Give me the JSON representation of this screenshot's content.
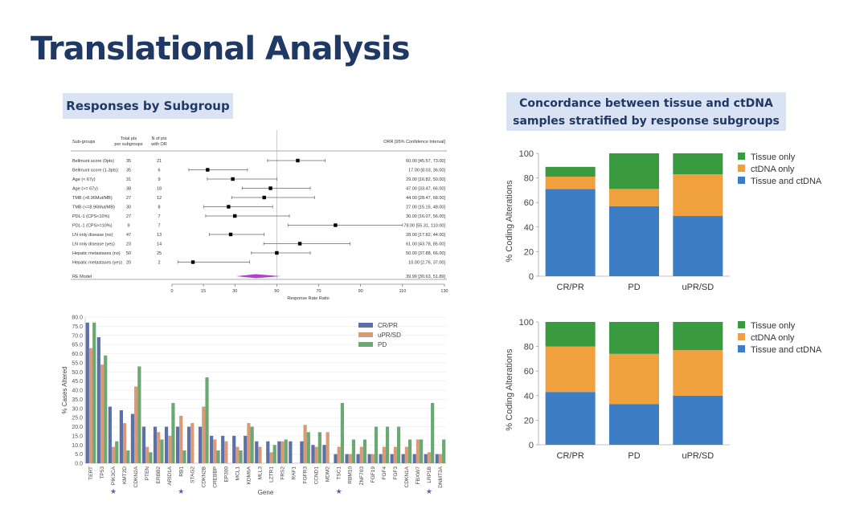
{
  "page_title": "Translational Analysis",
  "sub_heading": "Responses by Subgroup",
  "concordance_heading": [
    "Concordance between tissue and ctDNA",
    "samples stratified by response subgroups"
  ],
  "colors": {
    "title": "#1f3864",
    "box": "#dae3f3",
    "green": "#3a9a40",
    "orange": "#f0a03c",
    "blue": "#3c7dc4",
    "bar_blue": "#5b6fa8",
    "bar_orange": "#d99a76",
    "bar_green": "#6aa874"
  },
  "chart_data": [
    {
      "type": "forest",
      "headers": {
        "subgroups": "Sub-groups",
        "total": [
          "Total pts",
          "per subgroups"
        ],
        "n_orr": [
          "N of pts",
          "with OR"
        ],
        "ci": "ORR [95% Confidence Interval]"
      },
      "rows": [
        {
          "label": "Bellmunt score (0pts)",
          "total": "35",
          "n": "21",
          "orr": 60,
          "lo": 45.57,
          "hi": 73,
          "text": "60.00 [45.57, 73.00]"
        },
        {
          "label": "Bellmunt score (1-3pts)",
          "total": "35",
          "n": "6",
          "orr": 17,
          "lo": 8.03,
          "hi": 36,
          "text": "17.00 [8.03, 36.00]"
        },
        {
          "label": "Age (< 67y)",
          "total": "31",
          "n": "9",
          "orr": 29,
          "lo": 16.82,
          "hi": 50,
          "text": "29.00 [16.82, 50.00]"
        },
        {
          "label": "Age (>= 67y)",
          "total": "38",
          "n": "18",
          "orr": 47,
          "lo": 33.47,
          "hi": 66,
          "text": "47.00 [33.47, 66.00]"
        },
        {
          "label": "TMB (>8.96Mut/MB)",
          "total": "27",
          "n": "12",
          "orr": 44,
          "lo": 28.47,
          "hi": 68,
          "text": "44.00 [28.47, 68.00]"
        },
        {
          "label": "TMB (<=8.96Mut/MB)",
          "total": "30",
          "n": "8",
          "orr": 27,
          "lo": 15.15,
          "hi": 48,
          "text": "27.00 [15.15, 48.00]"
        },
        {
          "label": "PDL-1 (CPS<10%)",
          "total": "27",
          "n": "7",
          "orr": 30,
          "lo": 16.07,
          "hi": 56,
          "text": "30.00 [16.07, 56.00]"
        },
        {
          "label": "PDL-1 (CPS>=10%)",
          "total": "9",
          "n": "7",
          "orr": 78,
          "lo": 55.31,
          "hi": 110,
          "text": "78.00 [55.31, 110.00]"
        },
        {
          "label": "LN only disease (no)",
          "total": "47",
          "n": "13",
          "orr": 28,
          "lo": 17.82,
          "hi": 44,
          "text": "28.00 [17.82, 44.00]"
        },
        {
          "label": "LN only disease (yes)",
          "total": "23",
          "n": "14",
          "orr": 61,
          "lo": 43.78,
          "hi": 85,
          "text": "61.00 [43.78, 85.00]"
        },
        {
          "label": "Hepatic metastases (no)",
          "total": "50",
          "n": "25",
          "orr": 50,
          "lo": 37.88,
          "hi": 66,
          "text": "50.00 [37.88, 66.00]"
        },
        {
          "label": "Hepatic metastases (yes)",
          "total": "20",
          "n": "2",
          "orr": 10,
          "lo": 2.76,
          "hi": 37,
          "text": "10.00 [2.76, 37.00]"
        }
      ],
      "model": {
        "label": "RE Model",
        "orr": 39.99,
        "lo": 30.63,
        "hi": 51.89,
        "text": "39.99 [30.63, 51.89]"
      },
      "xticks": [
        0,
        15,
        30,
        50,
        70,
        90,
        110,
        130
      ],
      "xlim": [
        0,
        130
      ],
      "xlabel": "Response Rate Ratio"
    },
    {
      "type": "bar",
      "ylabel": "% Cases Altered",
      "xlabel": "Gene",
      "ylim": [
        0,
        80
      ],
      "yticks": [
        "0.0",
        "5.0",
        "10.0",
        "15.0",
        "20.0",
        "25.0",
        "30.0",
        "35.0",
        "40.0",
        "45.0",
        "50.0",
        "55.0",
        "60.0",
        "65.0",
        "70.0",
        "75.0",
        "80.0"
      ],
      "categories": [
        "TERT",
        "TP53",
        "PIK3CA",
        "KMT2D",
        "CDKN2A",
        "PTEN",
        "ERBB2",
        "ARID1A",
        "RB1",
        "STAG2",
        "CDKN2B",
        "CREBBP",
        "EP300",
        "MCL1",
        "KDM6A",
        "MLL3",
        "LZTR1",
        "FRS2",
        "RAF1",
        "FGFR3",
        "CCND1",
        "MDM2",
        "TSC1",
        "RBM10",
        "ZNF703",
        "FGF19",
        "FGF4",
        "FGF3",
        "CDKN1A",
        "FBXW7",
        "LRP1B",
        "DNMT3A"
      ],
      "starred": [
        "PIK3CA",
        "RB1",
        "TSC1",
        "LRP1B"
      ],
      "star_glyph": "★",
      "series": [
        {
          "name": "CR/PR",
          "values": [
            77,
            69,
            31,
            29,
            27,
            20,
            20,
            20,
            20,
            20,
            20,
            15,
            15,
            15,
            15,
            12,
            12,
            12,
            12,
            12,
            10,
            10,
            5,
            5,
            5,
            5,
            5,
            5,
            5,
            5,
            5,
            5
          ]
        },
        {
          "name": "uPR/SD",
          "values": [
            63,
            54,
            9,
            22,
            42,
            9,
            17,
            15,
            26,
            22,
            31,
            13,
            12,
            9,
            22,
            9,
            6,
            12,
            0,
            21,
            9,
            17,
            9,
            5,
            9,
            5,
            9,
            9,
            9,
            13,
            6,
            5
          ]
        },
        {
          "name": "PD",
          "values": [
            77,
            59,
            12,
            7,
            53,
            6,
            13,
            33,
            7,
            0,
            47,
            7,
            0,
            7,
            20,
            0,
            10,
            13,
            0,
            17,
            17,
            0,
            33,
            13,
            13,
            20,
            20,
            20,
            13,
            13,
            33,
            13
          ]
        }
      ]
    },
    {
      "type": "stacked-bar",
      "ylabel": "% Coding Alterations",
      "ylim": [
        0,
        100
      ],
      "yticks": [
        "0",
        "20",
        "40",
        "60",
        "80",
        "100"
      ],
      "categories": [
        "CR/PR",
        "PD",
        "uPR/SD"
      ],
      "series": [
        {
          "name": "Tissue only",
          "values": [
            8,
            29,
            17
          ]
        },
        {
          "name": "ctDNA only",
          "values": [
            10,
            14,
            34
          ]
        },
        {
          "name": "Tissue and ctDNA",
          "values": [
            71,
            57,
            49
          ]
        }
      ]
    },
    {
      "type": "stacked-bar",
      "ylabel": "% Coding Alterations",
      "ylim": [
        0,
        100
      ],
      "yticks": [
        "0",
        "20",
        "40",
        "60",
        "80",
        "100"
      ],
      "categories": [
        "CR/PR",
        "PD",
        "uPR/SD"
      ],
      "series": [
        {
          "name": "Tissue only",
          "values": [
            20,
            26,
            23
          ]
        },
        {
          "name": "ctDNA only",
          "values": [
            37,
            41,
            37
          ]
        },
        {
          "name": "Tissue and ctDNA",
          "values": [
            43,
            33,
            40
          ]
        }
      ]
    }
  ]
}
